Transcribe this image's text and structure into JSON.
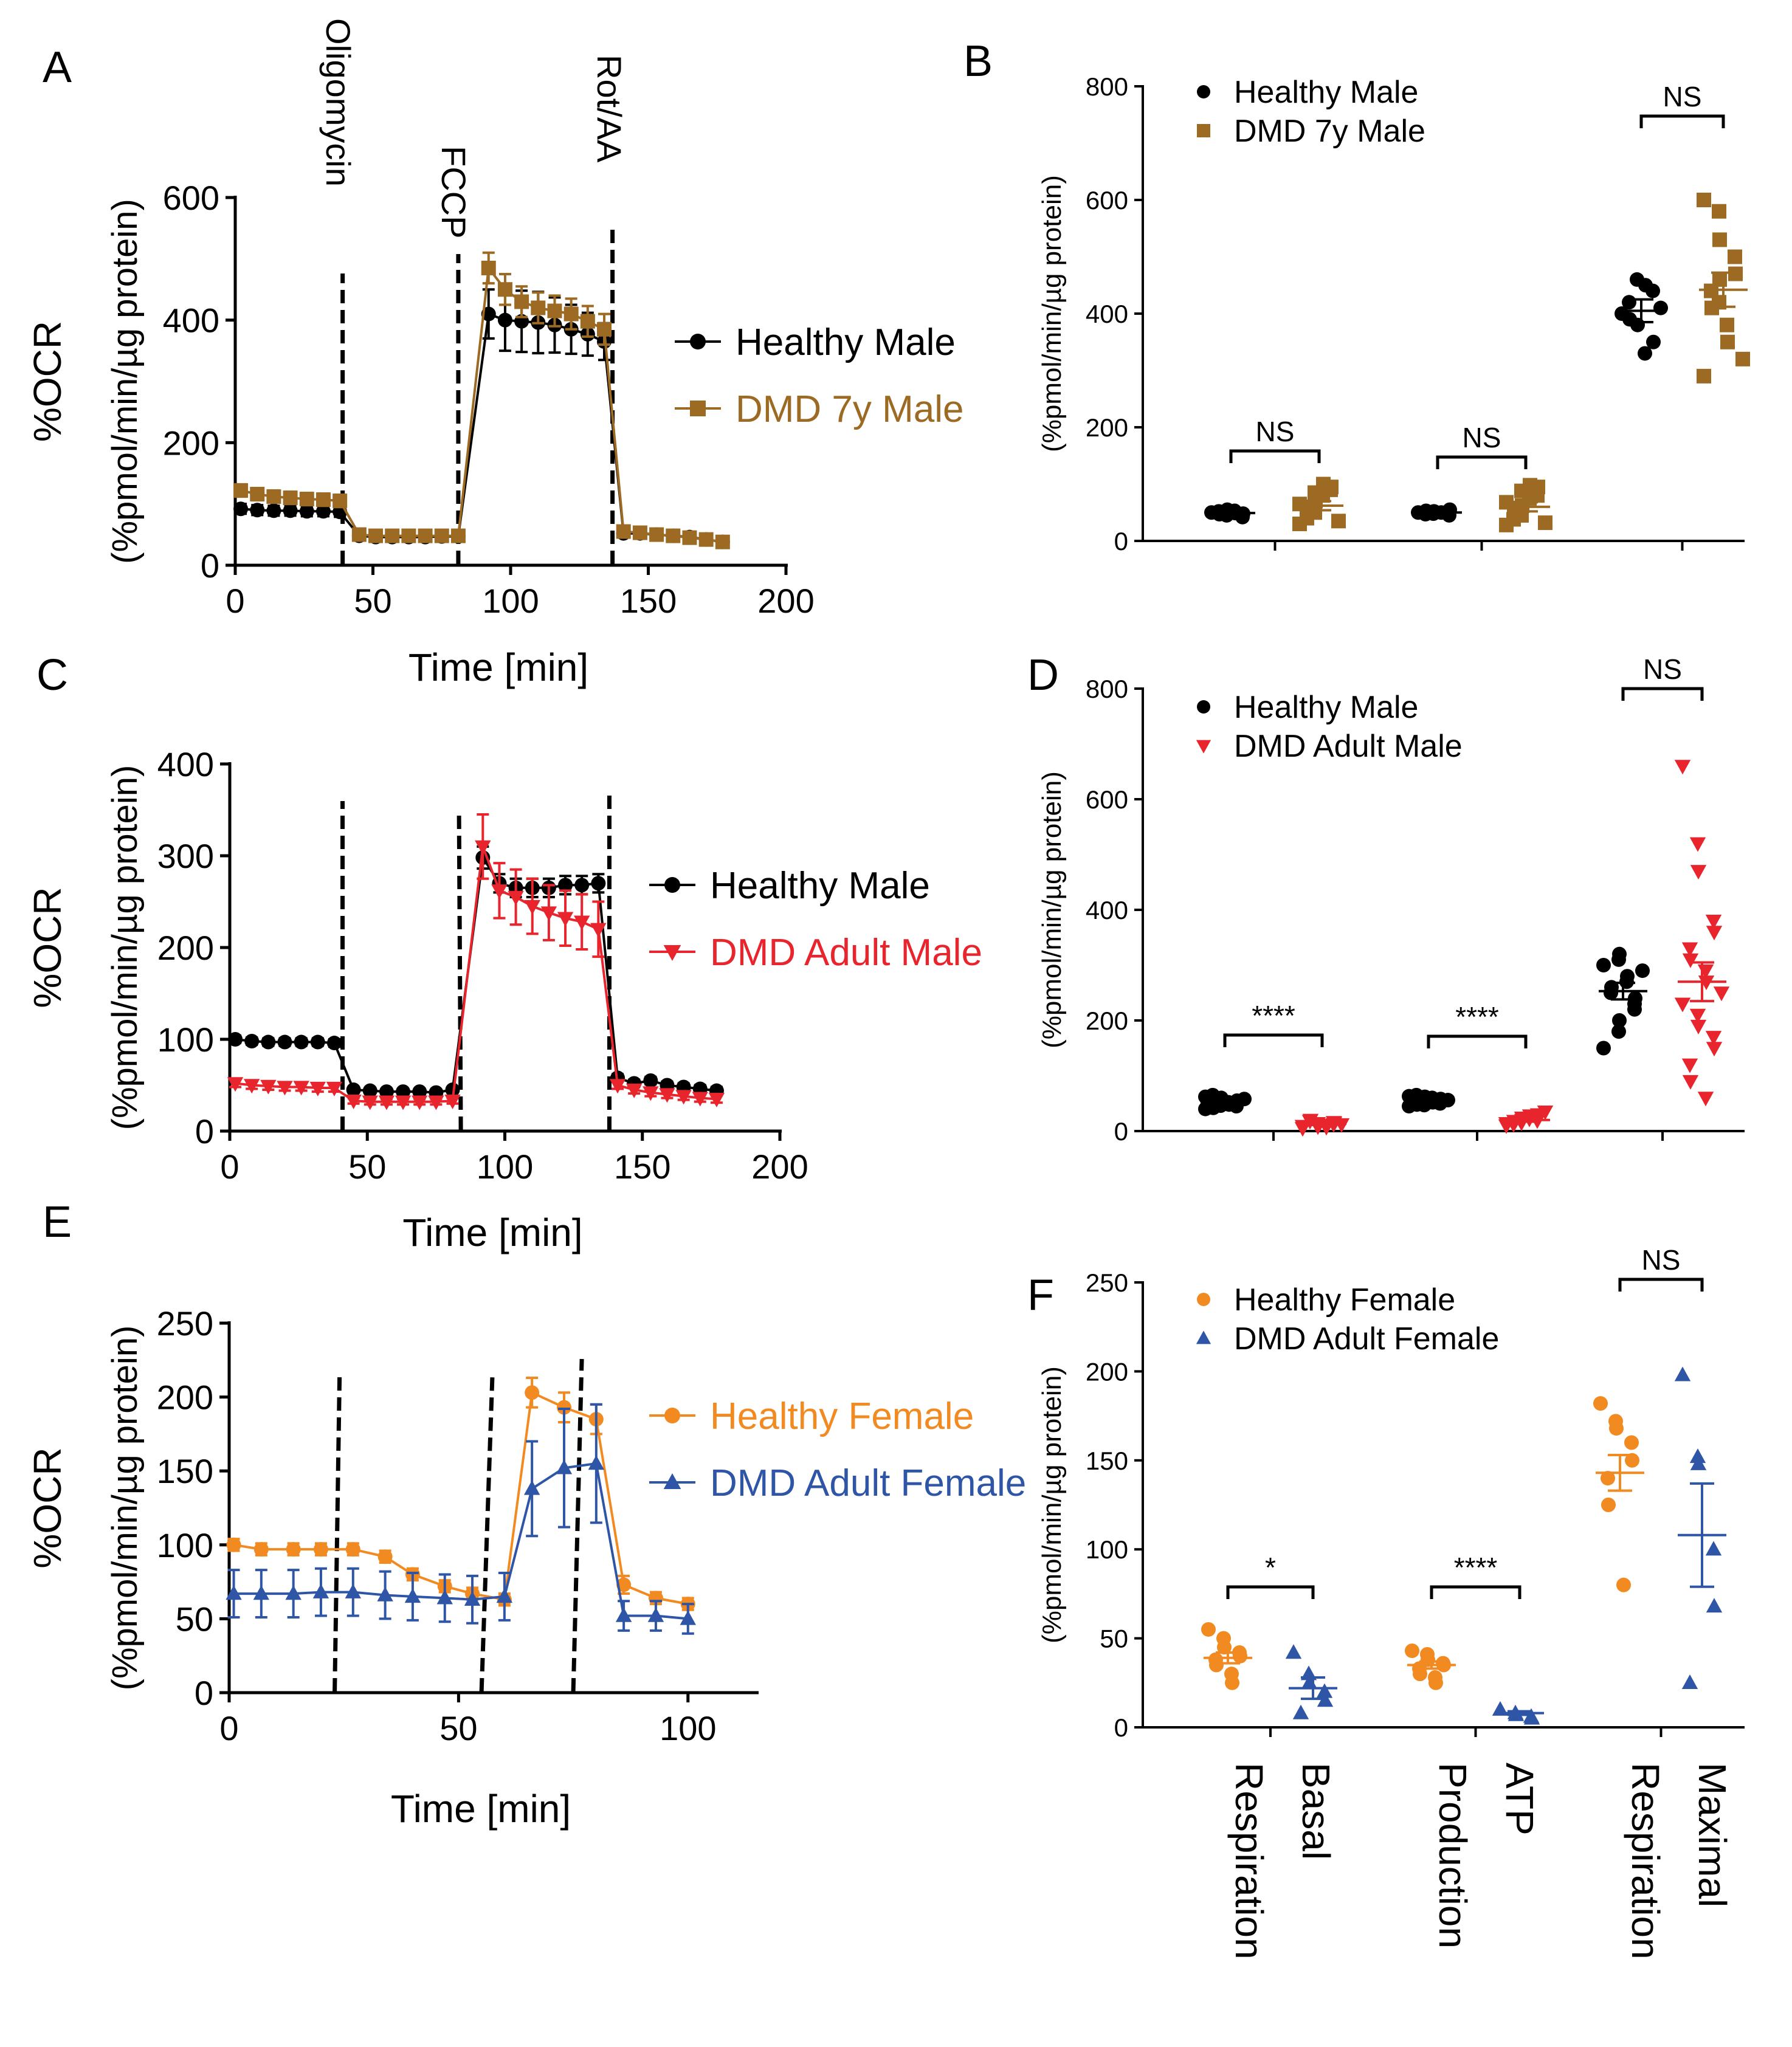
{
  "figure": {
    "title": "Seahorse mitochondrial stress test: %OCR time courses and summary statistics"
  },
  "colors": {
    "healthy_male": "#000000",
    "dmd_7y": "#9c6a22",
    "dmd_adult_male": "#e8242c",
    "healthy_female": "#f28a22",
    "dmd_adult_female": "#2f55a6"
  },
  "chart_data": [
    {
      "panel": "A",
      "type": "line",
      "title": "",
      "xlabel": "Time [min]",
      "ylabel": [
        "%OCR",
        "(%pmol/min/µg protein)"
      ],
      "xlim": [
        0,
        200
      ],
      "ylim": [
        0,
        600
      ],
      "xticks": [
        0,
        50,
        100,
        150,
        200
      ],
      "yticks": [
        0,
        200,
        400,
        600
      ],
      "injections": [
        {
          "label": "Oligomycin",
          "x": 39
        },
        {
          "label": "FCCP",
          "x": 81
        },
        {
          "label": "Rot/AA",
          "x": 137
        }
      ],
      "legend": "right",
      "series": [
        {
          "name": "Healthy Male",
          "marker": "circle",
          "color": "#000000",
          "x": [
            2,
            8,
            14,
            20,
            26,
            32,
            38,
            45,
            51,
            57,
            63,
            69,
            75,
            81,
            92,
            98,
            104,
            110,
            116,
            122,
            128,
            134,
            141,
            147,
            153,
            159,
            165,
            171,
            177
          ],
          "y": [
            92,
            90,
            89,
            89,
            88,
            88,
            87,
            48,
            46,
            46,
            46,
            46,
            47,
            47,
            410,
            400,
            398,
            396,
            392,
            385,
            377,
            365,
            52,
            52,
            50,
            48,
            46,
            42,
            38
          ],
          "err": [
            8,
            8,
            8,
            8,
            8,
            8,
            8,
            6,
            6,
            6,
            6,
            6,
            6,
            6,
            40,
            50,
            50,
            50,
            45,
            40,
            35,
            30,
            6,
            6,
            6,
            6,
            6,
            6,
            6
          ]
        },
        {
          "name": "DMD 7y  Male",
          "marker": "square",
          "color": "#9c6a22",
          "x": [
            2,
            8,
            14,
            20,
            26,
            32,
            38,
            45,
            51,
            57,
            63,
            69,
            75,
            81,
            92,
            98,
            104,
            110,
            116,
            122,
            128,
            134,
            141,
            147,
            153,
            159,
            165,
            171,
            177
          ],
          "y": [
            122,
            116,
            112,
            110,
            108,
            107,
            105,
            50,
            48,
            48,
            48,
            48,
            48,
            48,
            485,
            450,
            430,
            420,
            415,
            410,
            398,
            385,
            55,
            53,
            50,
            48,
            45,
            42,
            38
          ],
          "err": [
            10,
            10,
            10,
            10,
            10,
            10,
            10,
            6,
            6,
            6,
            6,
            6,
            6,
            6,
            25,
            25,
            25,
            25,
            25,
            25,
            25,
            25,
            6,
            6,
            6,
            6,
            6,
            6,
            6
          ]
        }
      ]
    },
    {
      "panel": "B",
      "type": "scatter",
      "title": "",
      "xlabel": "",
      "ylabel": "(%pmol/min/µg protein)",
      "ylim": [
        0,
        800
      ],
      "yticks": [
        0,
        200,
        400,
        600,
        800
      ],
      "categories": [
        "Basal Respiration",
        "ATP Production",
        "Maximal Respiration"
      ],
      "significance": [
        "NS",
        "NS",
        "NS"
      ],
      "legend": "top-left",
      "series": [
        {
          "name": "Healthy Male",
          "marker": "circle",
          "color": "#000000",
          "points": [
            [
              50,
              45,
              55,
              42,
              48,
              52,
              47,
              53,
              49
            ],
            [
              50,
              48,
              52,
              45,
              55,
              47,
              53,
              50
            ],
            [
              400,
              460,
              380,
              440,
              350,
              420,
              390,
              330,
              450,
              410
            ]
          ],
          "mean": [
            49,
            50,
            405
          ],
          "sem": [
            3,
            3,
            20
          ]
        },
        {
          "name": "DMD 7y Male",
          "marker": "square",
          "color": "#9c6a22",
          "points": [
            [
              30,
              50,
              70,
              90,
              95,
              40,
              60,
              80,
              100,
              35,
              65,
              85
            ],
            [
              28,
              45,
              62,
              80,
              95,
              38,
              58,
              75,
              98,
              32,
              68,
              88
            ],
            [
              600,
              580,
              530,
              500,
              470,
              440,
              410,
              380,
              350,
              320,
              290,
              420,
              460
            ]
          ],
          "mean": [
            62,
            60,
            442
          ],
          "sem": [
            8,
            8,
            30
          ]
        }
      ]
    },
    {
      "panel": "C",
      "type": "line",
      "title": "",
      "xlabel": "Time [min]",
      "ylabel": [
        "%OCR",
        "(%pmol/min/µg protein)"
      ],
      "xlim": [
        0,
        200
      ],
      "ylim": [
        0,
        400
      ],
      "xticks": [
        0,
        50,
        100,
        150,
        200
      ],
      "yticks": [
        0,
        100,
        200,
        300,
        400
      ],
      "injections": [
        {
          "label": "Oligomycin",
          "x": 41
        },
        {
          "label": "FCCP",
          "x": 84
        },
        {
          "label": "Rot/AA",
          "x": 138
        }
      ],
      "legend": "right",
      "series": [
        {
          "name": "Healthy Male",
          "marker": "circle",
          "color": "#000000",
          "x": [
            2,
            8,
            14,
            20,
            26,
            32,
            38,
            45,
            51,
            57,
            63,
            69,
            75,
            81,
            92,
            98,
            104,
            110,
            116,
            122,
            128,
            134,
            141,
            147,
            153,
            159,
            165,
            171,
            177
          ],
          "y": [
            100,
            98,
            97,
            97,
            97,
            97,
            96,
            45,
            44,
            43,
            43,
            43,
            42,
            45,
            298,
            270,
            265,
            265,
            265,
            268,
            268,
            270,
            58,
            52,
            55,
            50,
            48,
            46,
            44
          ],
          "err": [
            4,
            4,
            4,
            4,
            4,
            4,
            4,
            3,
            3,
            3,
            3,
            3,
            3,
            3,
            12,
            10,
            10,
            10,
            10,
            10,
            10,
            10,
            4,
            4,
            4,
            4,
            4,
            4,
            4
          ]
        },
        {
          "name": "DMD Adult Male",
          "marker": "triangle-down",
          "color": "#e8242c",
          "x": [
            2,
            8,
            14,
            20,
            26,
            32,
            38,
            45,
            51,
            57,
            63,
            69,
            75,
            81,
            92,
            98,
            104,
            110,
            116,
            122,
            128,
            134,
            141,
            147,
            153,
            159,
            165,
            171,
            177
          ],
          "y": [
            52,
            50,
            49,
            48,
            48,
            47,
            47,
            33,
            32,
            32,
            32,
            32,
            32,
            33,
            310,
            262,
            255,
            245,
            238,
            232,
            228,
            220,
            50,
            45,
            42,
            40,
            38,
            36,
            35
          ],
          "err": [
            4,
            4,
            4,
            4,
            4,
            4,
            4,
            3,
            3,
            3,
            3,
            3,
            3,
            3,
            35,
            30,
            30,
            30,
            30,
            30,
            30,
            30,
            4,
            4,
            4,
            4,
            4,
            4,
            4
          ]
        }
      ]
    },
    {
      "panel": "D",
      "type": "scatter",
      "title": "",
      "xlabel": "",
      "ylabel": "(%pmol/min/µg protein)",
      "ylim": [
        0,
        800
      ],
      "yticks": [
        0,
        200,
        400,
        600,
        800
      ],
      "categories": [
        "Basal Respiration",
        "ATP Production",
        "Maximal Respiration"
      ],
      "significance": [
        "****",
        "****",
        "NS"
      ],
      "legend": "top-left",
      "series": [
        {
          "name": "Healthy Male",
          "marker": "circle",
          "color": "#000000",
          "points": [
            [
              40,
              50,
              60,
              45,
              55,
              65,
              42,
              52,
              48,
              58,
              62,
              46,
              53
            ],
            [
              45,
              55,
              62,
              50,
              58,
              65,
              48,
              60,
              52,
              56,
              63,
              47
            ],
            [
              150,
              180,
              200,
              220,
              240,
              250,
              260,
              270,
              280,
              290,
              300,
              310,
              320,
              230
            ]
          ],
          "mean": [
            52,
            57,
            253
          ],
          "sem": [
            3,
            2,
            15
          ]
        },
        {
          "name": "DMD Adult Male",
          "marker": "triangle-down",
          "color": "#e8242c",
          "points": [
            [
              5,
              8,
              10,
              12,
              15,
              18,
              20,
              10,
              7,
              12,
              9,
              14,
              11,
              16
            ],
            [
              10,
              15,
              20,
              25,
              30,
              12,
              18,
              22,
              28,
              35,
              14,
              16,
              24,
              19
            ],
            [
              660,
              520,
              470,
              380,
              360,
              330,
              310,
              290,
              270,
              250,
              230,
              210,
              190,
              170,
              150,
              120,
              90,
              60
            ]
          ],
          "mean": [
            13,
            20,
            270
          ],
          "sem": [
            2,
            3,
            35
          ]
        }
      ]
    },
    {
      "panel": "E",
      "type": "line",
      "title": "",
      "xlabel": "Time [min]",
      "ylabel": [
        "%OCR",
        "(%pmol/min/µg protein)"
      ],
      "xlim": [
        0,
        115
      ],
      "ylim": [
        0,
        250
      ],
      "xticks": [
        0,
        50,
        100
      ],
      "yticks": [
        0,
        50,
        100,
        150,
        200,
        250
      ],
      "injections": [
        {
          "label": "Oligomycin",
          "x": 23
        },
        {
          "label": "FCCP",
          "x": 55
        },
        {
          "label": "Rot/AA",
          "x": 75
        }
      ],
      "legend": "right",
      "series": [
        {
          "name": "Healthy Female",
          "marker": "circle",
          "color": "#f28a22",
          "x": [
            1,
            7,
            14,
            20,
            27,
            34,
            40,
            47,
            53,
            60,
            66,
            73,
            80,
            86,
            93,
            100
          ],
          "y": [
            100,
            97,
            97,
            97,
            97,
            92,
            80,
            72,
            67,
            63,
            203,
            193,
            185,
            73,
            64,
            60
          ],
          "err": [
            4,
            4,
            4,
            4,
            4,
            4,
            4,
            4,
            4,
            4,
            10,
            10,
            10,
            6,
            4,
            4
          ]
        },
        {
          "name": "DMD Adult Female",
          "marker": "triangle",
          "color": "#2f55a6",
          "x": [
            1,
            7,
            14,
            20,
            27,
            34,
            40,
            47,
            53,
            60,
            66,
            73,
            80,
            86,
            93,
            100
          ],
          "y": [
            67,
            67,
            67,
            68,
            68,
            66,
            65,
            64,
            63,
            65,
            138,
            152,
            155,
            52,
            52,
            50
          ],
          "err": [
            16,
            16,
            16,
            16,
            16,
            16,
            16,
            16,
            16,
            16,
            32,
            40,
            40,
            10,
            10,
            10
          ]
        }
      ]
    },
    {
      "panel": "F",
      "type": "scatter",
      "title": "",
      "xlabel": "",
      "ylabel": "(%pmol/min/µg protein)",
      "ylim": [
        0,
        250
      ],
      "yticks": [
        0,
        50,
        100,
        150,
        200,
        250
      ],
      "categories": [
        "Basal Respiration",
        "ATP Production",
        "Maximal Respiration"
      ],
      "significance": [
        "*",
        "****",
        "NS"
      ],
      "legend": "top-left",
      "series": [
        {
          "name": "Healthy Female",
          "marker": "circle",
          "color": "#f28a22",
          "points": [
            [
              55,
              50,
              45,
              42,
              40,
              38,
              35,
              30,
              25
            ],
            [
              43,
              41,
              38,
              36,
              35,
              33,
              30,
              28,
              25
            ],
            [
              182,
              172,
              168,
              160,
              150,
              140,
              125,
              80
            ]
          ],
          "mean": [
            39,
            35,
            143
          ],
          "sem": [
            3,
            2,
            10
          ]
        },
        {
          "name": "DMD Adult Female",
          "marker": "triangle",
          "color": "#2f55a6",
          "points": [
            [
              42,
              30,
              25,
              20,
              15,
              8
            ],
            [
              10,
              8,
              7,
              6,
              5
            ],
            [
              198,
              152,
              148,
              100,
              68,
              25
            ]
          ],
          "mean": [
            22,
            8,
            108
          ],
          "sem": [
            6,
            1,
            29
          ]
        }
      ]
    }
  ],
  "panels": {
    "A": {
      "letter": "A",
      "injections": [
        "Oligomycin",
        "FCCP",
        "Rot/AA"
      ]
    }
  },
  "xaxis_labels": [
    [
      "Basal",
      "Respiration"
    ],
    [
      "ATP",
      "Production"
    ],
    [
      "Maximal",
      "Respiration"
    ]
  ]
}
